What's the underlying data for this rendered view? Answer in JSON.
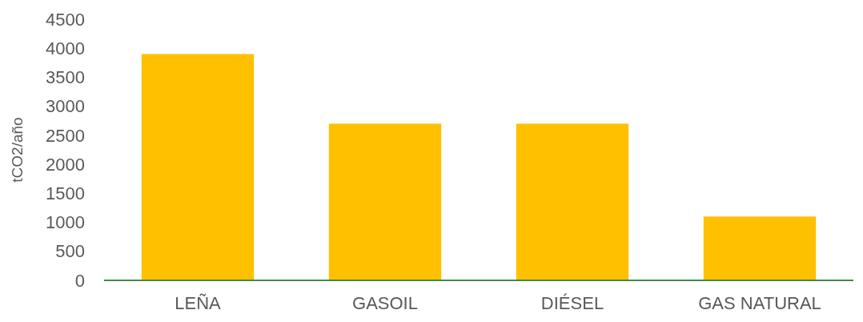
{
  "chart_data": {
    "type": "bar",
    "ylabel": "tCO2/año",
    "categories": [
      "LEÑA",
      "GASOIL",
      "DIÉSEL",
      "GAS NATURAL"
    ],
    "values": [
      3900,
      2700,
      2700,
      1100
    ],
    "color": "#ffc000",
    "ylim": [
      0,
      4500
    ],
    "yticks": [
      0,
      500,
      1000,
      1500,
      2000,
      2500,
      3000,
      3500,
      4000,
      4500
    ],
    "grid": false
  }
}
